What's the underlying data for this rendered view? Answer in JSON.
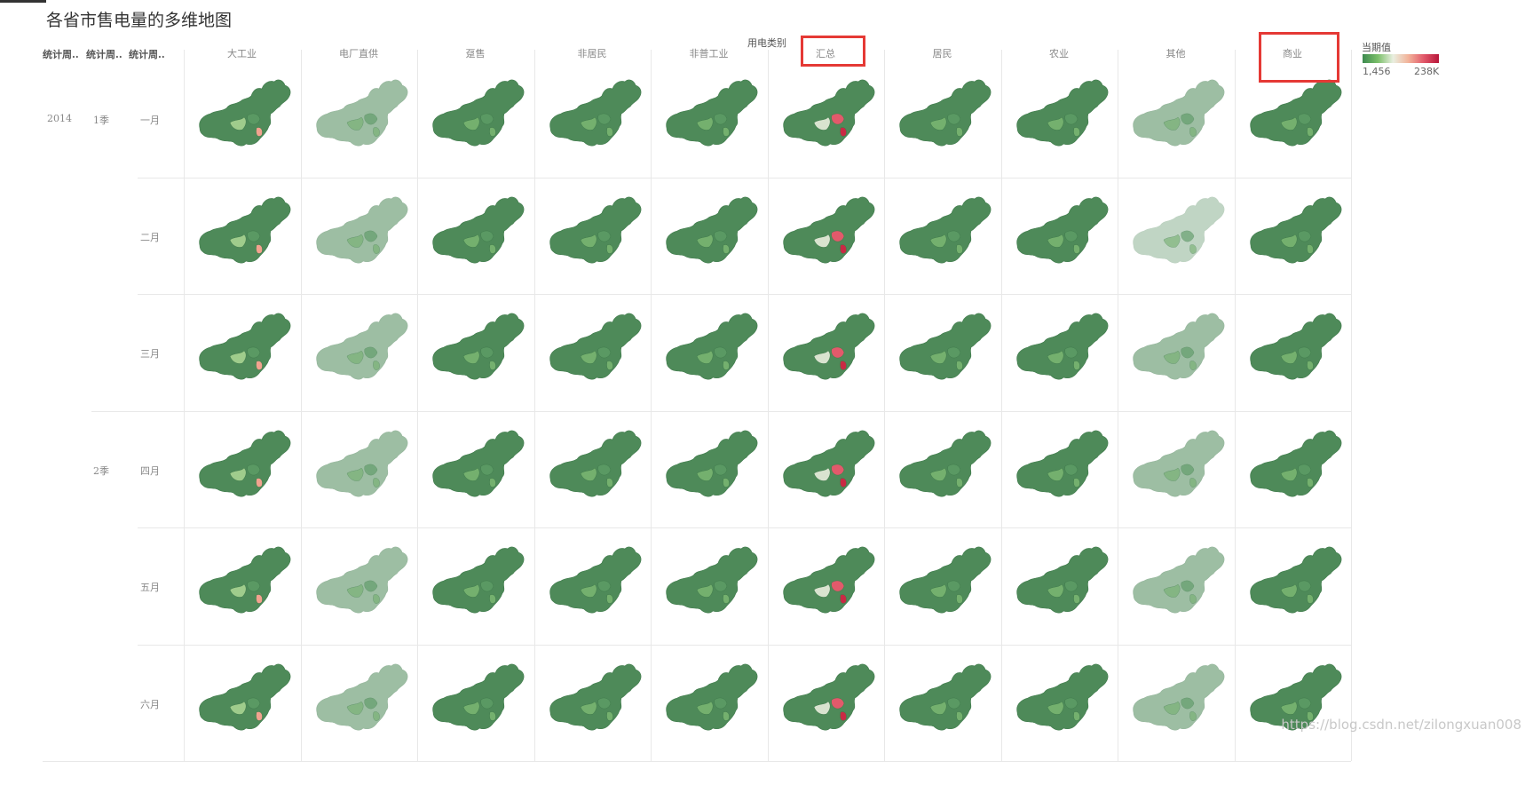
{
  "title": "各省市售电量的多维地图",
  "column_group_title": "用电类别",
  "row_headers": [
    "统计周..",
    "统计周..",
    "统计周.."
  ],
  "columns": [
    "大工业",
    "电厂直供",
    "趸售",
    "非居民",
    "非普工业",
    "汇总",
    "居民",
    "农业",
    "其他",
    "商业"
  ],
  "highlighted_columns": [
    "汇总",
    "商业"
  ],
  "year": "2014",
  "quarters": [
    {
      "label": "1季",
      "months": [
        "一月",
        "二月",
        "三月"
      ]
    },
    {
      "label": "2季",
      "months": [
        "四月",
        "五月",
        "六月"
      ]
    }
  ],
  "legend": {
    "title": "当期值",
    "min": "1,456",
    "max": "238K",
    "colors": [
      "#3d8a4f",
      "#7bbf6a",
      "#e9efe0",
      "#f2b39a",
      "#e25a6b",
      "#b8163a"
    ]
  },
  "watermark": "https://blog.csdn.net/zilongxuan008",
  "map_icon": "china-province-map"
}
